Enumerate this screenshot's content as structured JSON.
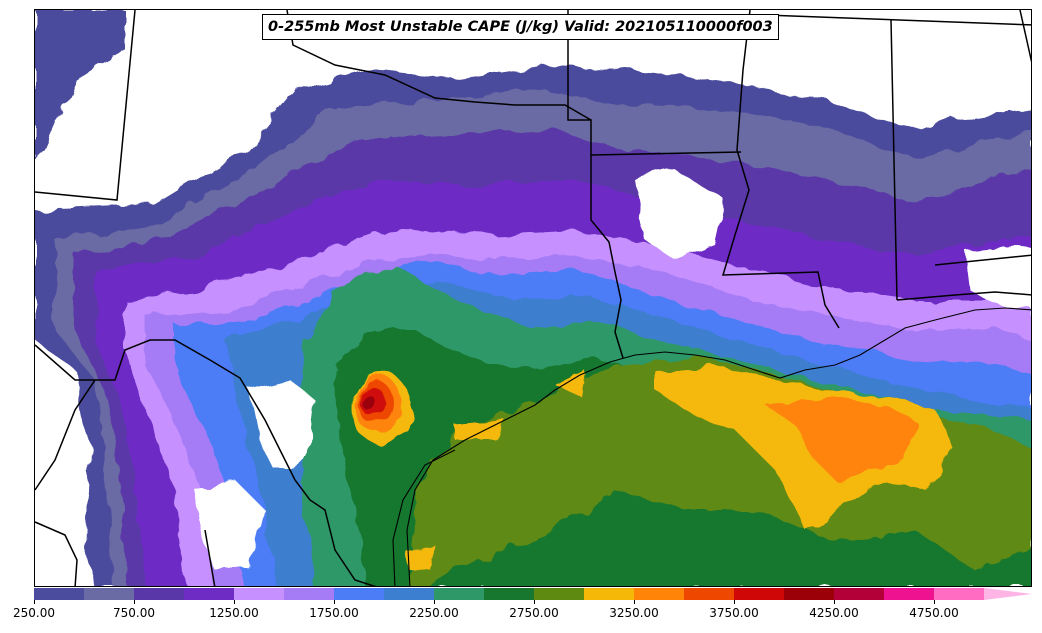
{
  "title": "0-255mb Most Unstable CAPE (J/kg) Valid: 202105110000f003",
  "colorbar": {
    "colors": [
      "#4c4c9e",
      "#6a6aa4",
      "#5a37a8",
      "#6e2cc5",
      "#c691ff",
      "#a67cf6",
      "#4d7cf7",
      "#3c7ecf",
      "#2e9869",
      "#18772e",
      "#5e8a12",
      "#f5b808",
      "#ff8408",
      "#ee4700",
      "#d00707",
      "#9b0009",
      "#b30039",
      "#ee1290",
      "#ff6cc1"
    ],
    "extend_color": "#ffb4e6",
    "tick_labels": [
      "250.00",
      "750.00",
      "1250.00",
      "1750.00",
      "2250.00",
      "2750.00",
      "3250.00",
      "3750.00",
      "4250.00",
      "4750.00"
    ]
  },
  "map": {
    "units": "J/kg",
    "colors": {
      "level_250": "#4c4c9e",
      "level_500": "#6a6aa4",
      "level_750": "#5a37a8",
      "level_1000": "#6e2cc5",
      "level_1250": "#c691ff",
      "level_1500": "#a67cf6",
      "level_1750": "#4d7cf7",
      "level_2000": "#3c7ecf",
      "level_2250": "#2e9869",
      "level_2500": "#18772e",
      "level_2750": "#5e8a12",
      "level_3000": "#f5b808",
      "level_3250": "#ff8408",
      "level_3500": "#ee4700",
      "level_3750": "#d00707",
      "level_4000": "#9b0009",
      "boundary": "#000000",
      "no_data": "#ffffff"
    }
  }
}
